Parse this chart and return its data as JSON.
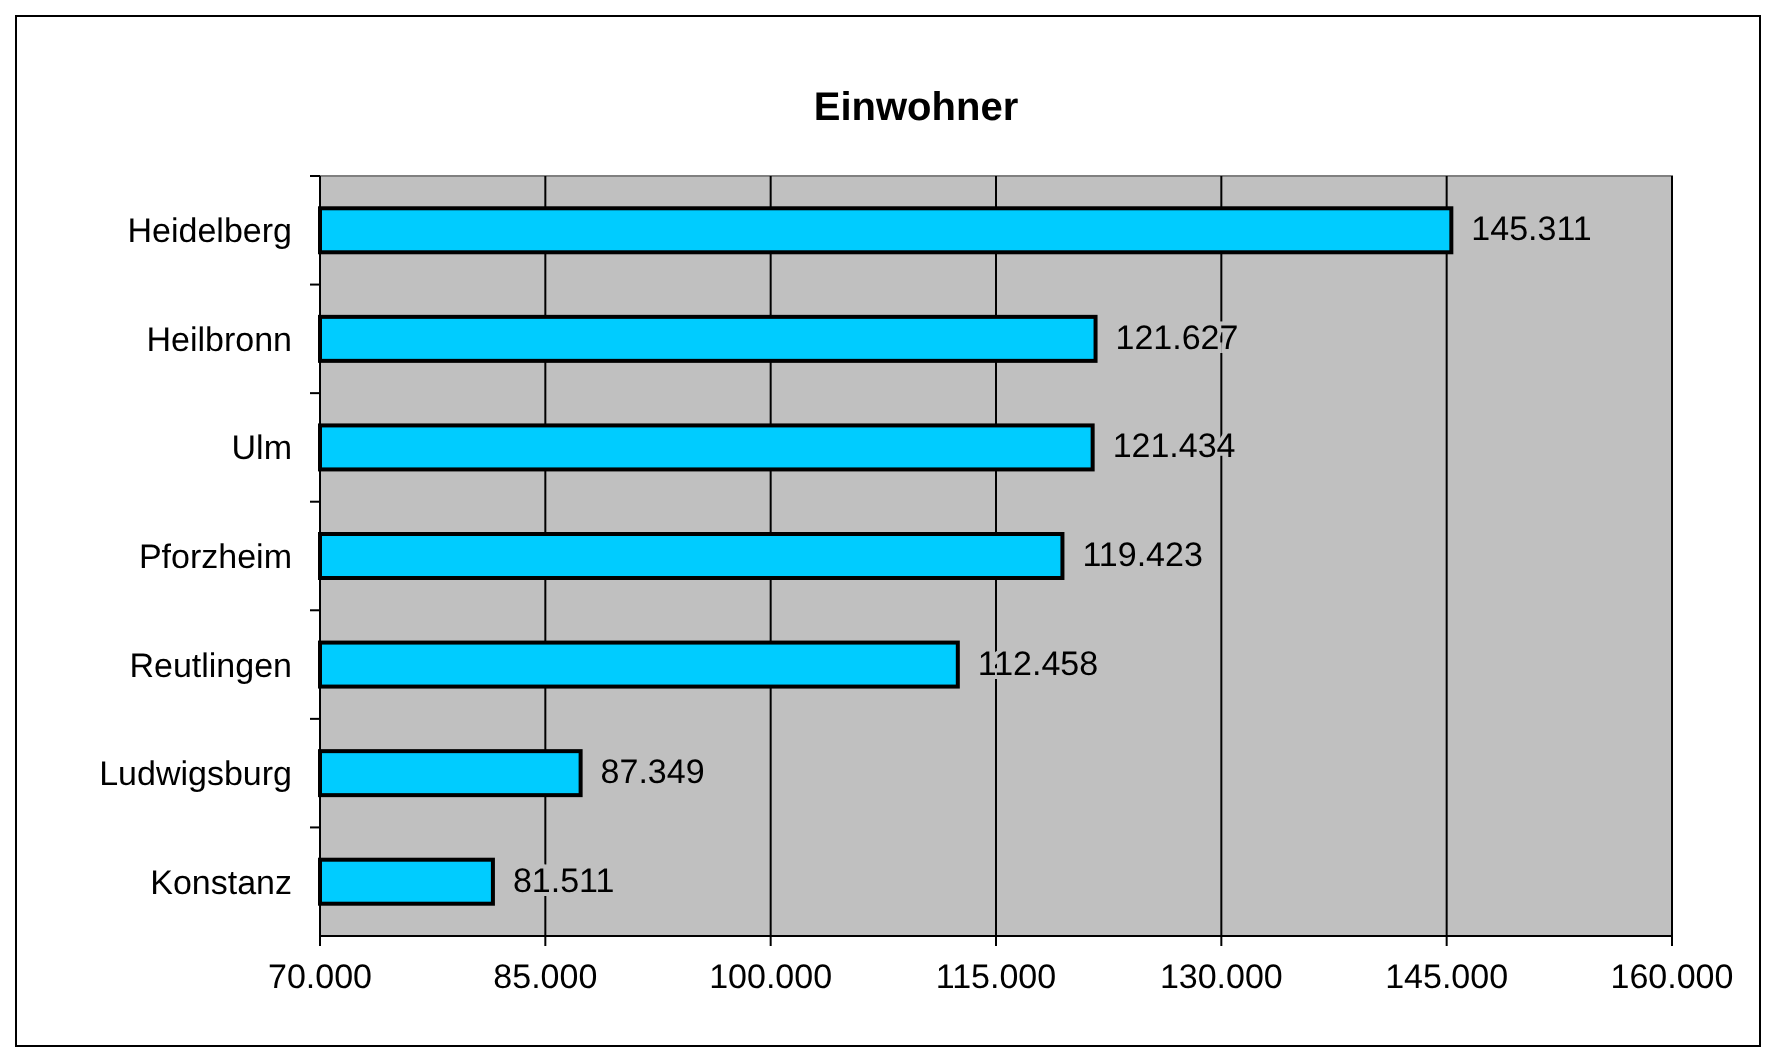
{
  "chart_data": {
    "type": "bar",
    "orientation": "horizontal",
    "title": "Einwohner",
    "categories": [
      "Heidelberg",
      "Heilbronn",
      "Ulm",
      "Pforzheim",
      "Reutlingen",
      "Ludwigsburg",
      "Konstanz"
    ],
    "values": [
      145311,
      121627,
      121434,
      119423,
      112458,
      87349,
      81511
    ],
    "value_labels": [
      "145.311",
      "121.627",
      "121.434",
      "119.423",
      "112.458",
      "87.349",
      "81.511"
    ],
    "color": "#00ccff",
    "xlim": [
      70000,
      160000
    ],
    "xticks": [
      {
        "value": 70000,
        "label": "70.000"
      },
      {
        "value": 85000,
        "label": "85.000"
      },
      {
        "value": 100000,
        "label": "100.000"
      },
      {
        "value": 115000,
        "label": "115.000"
      },
      {
        "value": 130000,
        "label": "130.000"
      },
      {
        "value": 145000,
        "label": "145.000"
      },
      {
        "value": 160000,
        "label": "160.000"
      }
    ],
    "grid": "x"
  }
}
